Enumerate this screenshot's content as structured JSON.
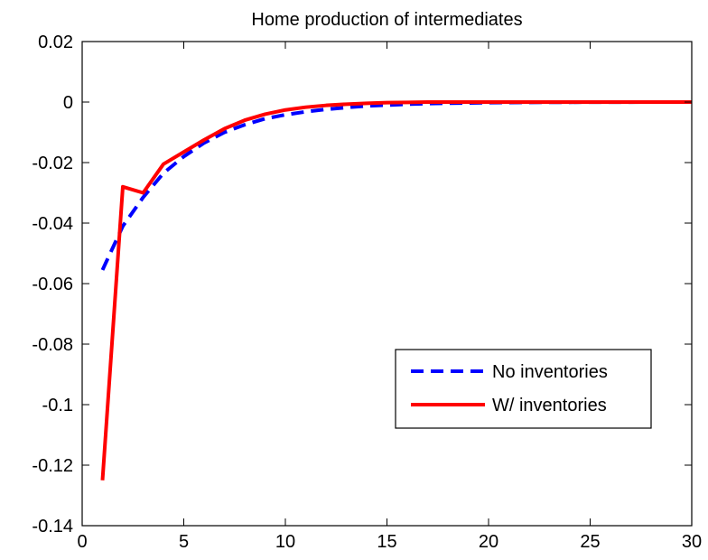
{
  "chart_data": {
    "type": "line",
    "title": "Home production of intermediates",
    "xlabel": "",
    "ylabel": "",
    "xlim": [
      0,
      30
    ],
    "ylim": [
      -0.14,
      0.02
    ],
    "xticks": [
      0,
      5,
      10,
      15,
      20,
      25,
      30
    ],
    "xtick_labels": [
      "0",
      "5",
      "10",
      "15",
      "20",
      "25",
      "30"
    ],
    "yticks": [
      0.02,
      0,
      -0.02,
      -0.04,
      -0.06,
      -0.08,
      -0.1,
      -0.12,
      -0.14
    ],
    "ytick_labels": [
      "0.02",
      "0",
      "-0.02",
      "-0.04",
      "-0.06",
      "-0.08",
      "-0.1",
      "-0.12",
      "-0.14"
    ],
    "grid": false,
    "legend_position": "lower-right",
    "series": [
      {
        "name": "No inventories",
        "color": "#0000ff",
        "style": "dashed",
        "x": [
          1,
          2,
          3,
          4,
          5,
          6,
          7,
          8,
          9,
          10,
          11,
          12,
          13,
          14,
          15,
          16,
          17,
          18,
          19,
          20,
          21,
          22,
          23,
          24,
          25,
          26,
          27,
          28,
          29,
          30
        ],
        "y": [
          -0.0555,
          -0.041,
          -0.0315,
          -0.0235,
          -0.018,
          -0.0135,
          -0.01,
          -0.0075,
          -0.0055,
          -0.0042,
          -0.0032,
          -0.0024,
          -0.0018,
          -0.0013,
          -0.001,
          -0.0007,
          -0.0005,
          -0.0004,
          -0.0003,
          -0.0002,
          -0.00015,
          -0.0001,
          -8e-05,
          -6e-05,
          -4e-05,
          -3e-05,
          -2e-05,
          -1e-05,
          0,
          0
        ]
      },
      {
        "name": "W/ inventories",
        "color": "#ff0000",
        "style": "solid",
        "x": [
          1,
          2,
          3,
          4,
          5,
          6,
          7,
          8,
          9,
          10,
          11,
          12,
          13,
          14,
          15,
          16,
          17,
          18,
          19,
          20,
          21,
          22,
          23,
          24,
          25,
          26,
          27,
          28,
          29,
          30
        ],
        "y": [
          -0.125,
          -0.028,
          -0.03,
          -0.0205,
          -0.0165,
          -0.0125,
          -0.0088,
          -0.006,
          -0.004,
          -0.0026,
          -0.0017,
          -0.0011,
          -0.0007,
          -0.0004,
          -0.0002,
          -0.0001,
          0,
          0,
          0,
          0,
          0,
          0,
          0,
          0,
          0,
          0,
          0,
          0,
          0,
          0
        ]
      }
    ]
  }
}
